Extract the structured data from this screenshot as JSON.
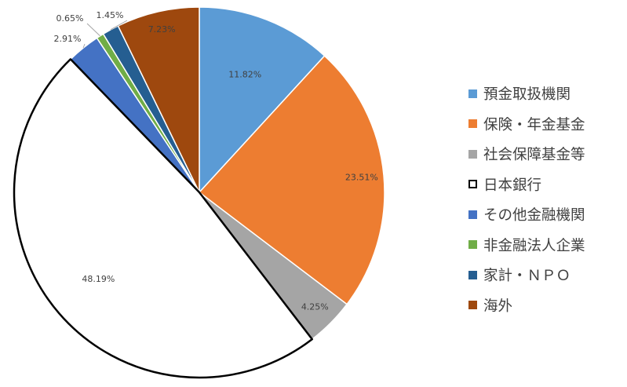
{
  "chart_data": {
    "type": "pie",
    "title": "",
    "legend_position": "right",
    "slices": [
      {
        "name": "預金取扱機関",
        "value": 11.82,
        "label": "11.82%",
        "color": "#5b9bd5"
      },
      {
        "name": "保険・年金基金",
        "value": 23.51,
        "label": "23.51%",
        "color": "#ed7d31"
      },
      {
        "name": "社会保障基金等",
        "value": 4.25,
        "label": "4.25%",
        "color": "#a5a5a5"
      },
      {
        "name": "日本銀行",
        "value": 48.19,
        "label": "48.19%",
        "color": "#ffffff",
        "outline": "#000000"
      },
      {
        "name": "その他金融機関",
        "value": 2.91,
        "label": "2.91%",
        "color": "#4472c4"
      },
      {
        "name": "非金融法人企業",
        "value": 0.65,
        "label": "0.65%",
        "color": "#70ad47"
      },
      {
        "name": "家計・ＮＰＯ",
        "value": 1.45,
        "label": "1.45%",
        "color": "#255e91"
      },
      {
        "name": "海外",
        "value": 7.23,
        "label": "7.23%",
        "color": "#9e480e"
      }
    ]
  }
}
